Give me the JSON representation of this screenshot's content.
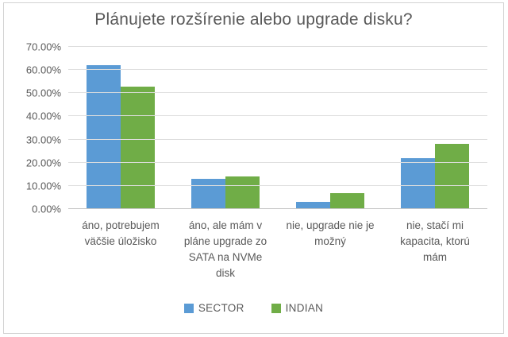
{
  "chart_data": {
    "type": "bar",
    "title": "Plánujete rozšírenie alebo upgrade disku?",
    "categories": [
      "áno, potrebujem väčšie úložisko",
      "áno, ale mám v pláne upgrade zo SATA na NVMe disk",
      "nie, upgrade nie je možný",
      "nie, stačí mi kapacita, ktorú mám"
    ],
    "series": [
      {
        "name": "SECTOR",
        "color": "#5B9BD5",
        "values": [
          62,
          13,
          3,
          22
        ]
      },
      {
        "name": "INDIAN",
        "color": "#70AD47",
        "values": [
          53,
          14,
          7,
          28
        ]
      }
    ],
    "values_unit": "percent",
    "xlabel": "",
    "ylabel": "",
    "ylim": [
      0,
      70
    ],
    "y_ticks": [
      "0.00%",
      "10.00%",
      "20.00%",
      "30.00%",
      "40.00%",
      "50.00%",
      "60.00%",
      "70.00%"
    ],
    "grid": true,
    "legend_position": "bottom"
  },
  "colors": {
    "text": "#595959",
    "gridline": "#DEDEDE",
    "axis_line": "#C6C6C6",
    "frame_border": "#D2D2D2",
    "series_sector": "#5B9BD5",
    "series_indian": "#70AD47"
  }
}
